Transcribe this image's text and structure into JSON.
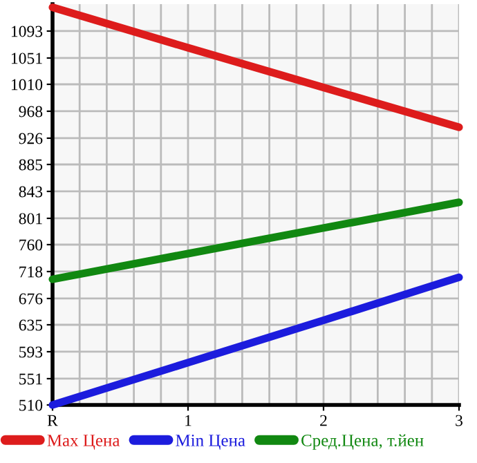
{
  "chart_data": {
    "type": "line",
    "categories": [
      "R",
      "1",
      "2",
      "3"
    ],
    "series": [
      {
        "name": "Max Цена",
        "color": "#dd1c1c",
        "values": [
          1130,
          1067,
          1005,
          943
        ]
      },
      {
        "name": "Min Цена",
        "color": "#1c1cdd",
        "values": [
          510,
          576,
          642,
          709
        ]
      },
      {
        "name": "Сред.Цена, т.йен",
        "color": "#118811",
        "values": [
          706,
          746,
          786,
          826
        ]
      }
    ],
    "ylim": [
      510,
      1135
    ],
    "yticks": [
      510,
      551,
      593,
      635,
      676,
      718,
      760,
      801,
      843,
      885,
      926,
      968,
      1010,
      1051,
      1093
    ],
    "grid": true,
    "legend": "bottom",
    "marker": "none",
    "line_style": "solid"
  }
}
